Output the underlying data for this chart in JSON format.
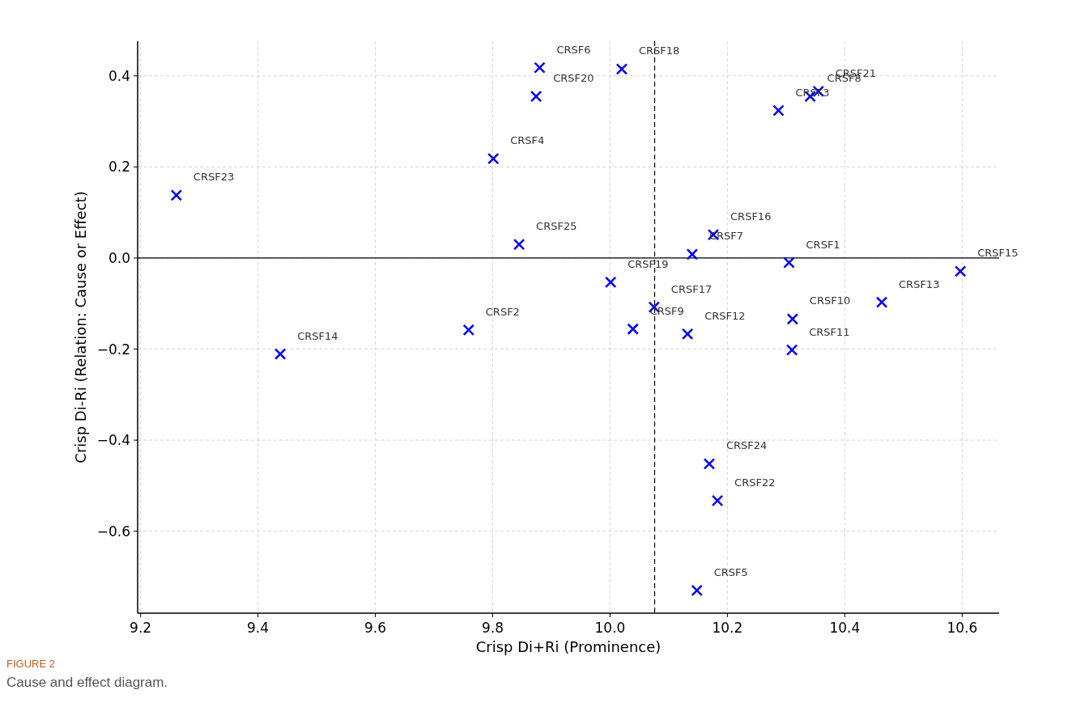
{
  "chart_data": {
    "type": "scatter",
    "xlabel": "Crisp Di+Ri (Prominence)",
    "ylabel": "Crisp Di-Ri (Relation: Cause or Effect)",
    "x": [
      10.305,
      9.759,
      10.287,
      9.801,
      10.148,
      9.88,
      10.14,
      10.341,
      10.039,
      10.311,
      10.31,
      10.132,
      10.463,
      9.438,
      10.597,
      10.176,
      10.075,
      10.02,
      10.001,
      9.874,
      10.355,
      10.183,
      9.261,
      10.169,
      9.845
    ],
    "series": [
      {
        "color": "#0000ff",
        "values": [
          -0.01,
          -0.158,
          0.324,
          0.218,
          -0.73,
          0.418,
          0.008,
          0.355,
          -0.156,
          -0.134,
          -0.202,
          -0.167,
          -0.097,
          -0.211,
          -0.029,
          0.051,
          -0.108,
          0.415,
          -0.053,
          0.355,
          0.366,
          -0.533,
          0.138,
          -0.452,
          0.03
        ]
      }
    ],
    "annotations": [
      {
        "text": "CRSF1",
        "x": 10.305,
        "y": -0.01
      },
      {
        "text": "CRSF2",
        "x": 9.759,
        "y": -0.158
      },
      {
        "text": "CRSF3",
        "x": 10.287,
        "y": 0.324
      },
      {
        "text": "CRSF4",
        "x": 9.801,
        "y": 0.218
      },
      {
        "text": "CRSF5",
        "x": 10.148,
        "y": -0.73
      },
      {
        "text": "CRSF6",
        "x": 9.88,
        "y": 0.418
      },
      {
        "text": "CRSF7",
        "x": 10.14,
        "y": 0.008
      },
      {
        "text": "CRSF8",
        "x": 10.341,
        "y": 0.355
      },
      {
        "text": "CRSF9",
        "x": 10.039,
        "y": -0.156
      },
      {
        "text": "CRSF10",
        "x": 10.311,
        "y": -0.134
      },
      {
        "text": "CRSF11",
        "x": 10.31,
        "y": -0.202
      },
      {
        "text": "CRSF12",
        "x": 10.132,
        "y": -0.167
      },
      {
        "text": "CRSF13",
        "x": 10.463,
        "y": -0.097
      },
      {
        "text": "CRSF14",
        "x": 9.438,
        "y": -0.211
      },
      {
        "text": "CRSF15",
        "x": 10.597,
        "y": -0.029
      },
      {
        "text": "CRSF16",
        "x": 10.176,
        "y": 0.051
      },
      {
        "text": "CRSF17",
        "x": 10.075,
        "y": -0.108
      },
      {
        "text": "CRSF18",
        "x": 10.02,
        "y": 0.415
      },
      {
        "text": "CRSF19",
        "x": 10.001,
        "y": -0.053
      },
      {
        "text": "CRSF20",
        "x": 9.874,
        "y": 0.355
      },
      {
        "text": "CRSF21",
        "x": 10.355,
        "y": 0.366
      },
      {
        "text": "CRSF22",
        "x": 10.183,
        "y": -0.533
      },
      {
        "text": "CRSF23",
        "x": 9.261,
        "y": 0.138
      },
      {
        "text": "CRSF24",
        "x": 10.169,
        "y": -0.452
      },
      {
        "text": "CRSF25",
        "x": 9.845,
        "y": 0.03
      },
      "FIGURE 2",
      "Cause and effect diagram."
    ],
    "xlim": [
      9.195,
      10.663
    ],
    "ylim": [
      -0.78,
      0.476
    ],
    "xticks": [
      9.2,
      9.4,
      9.6,
      9.8,
      {
        "value": 10.0,
        "label": "10.0"
      },
      10.2,
      10.4,
      10.6
    ],
    "yticks": [
      {
        "value": -0.6,
        "label": "−0.6"
      },
      {
        "value": -0.4,
        "label": "−0.4"
      },
      {
        "value": -0.2,
        "label": "−0.2"
      },
      {
        "value": 0,
        "label": "0.0"
      },
      0.2,
      0.4
    ],
    "ref_lines": [
      {
        "axis": "y",
        "value": 0,
        "color": "#000000",
        "line_style": "solid"
      },
      {
        "axis": "x",
        "value": 10.076,
        "color": "#000000",
        "line_style": "dashed"
      }
    ],
    "grid": true,
    "marker": "cross"
  }
}
